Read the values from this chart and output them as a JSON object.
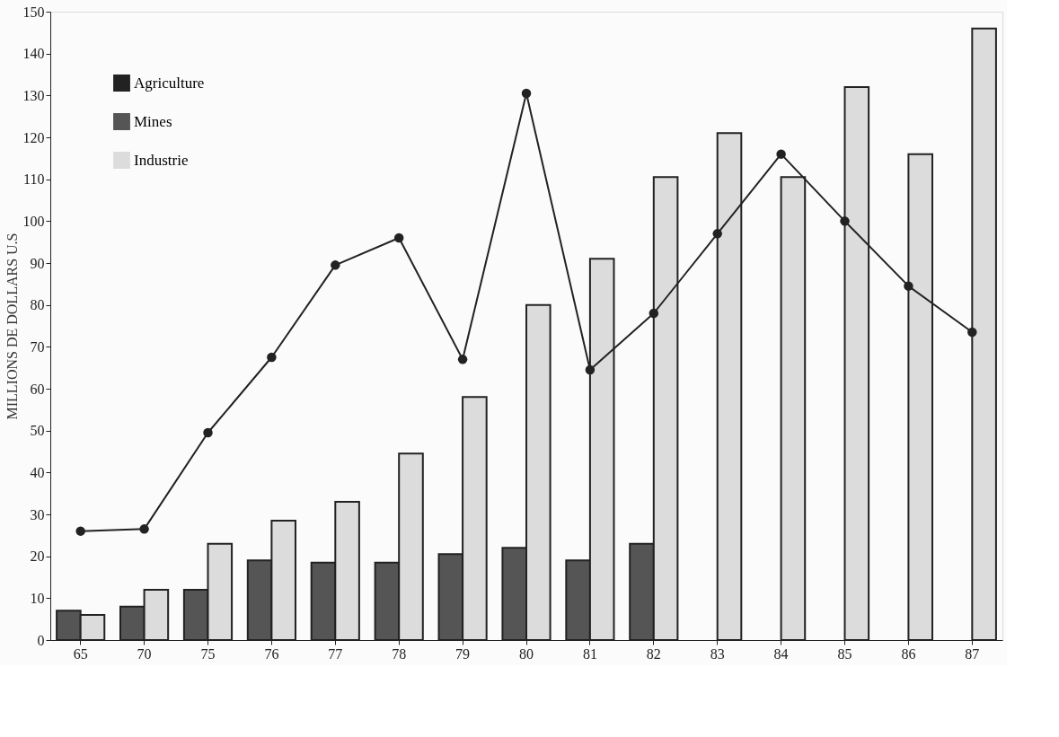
{
  "chart_data": {
    "type": "bar",
    "ylabel": "MILLIONS DE DOLLARS U.S",
    "categories": [
      "65",
      "70",
      "75",
      "76",
      "77",
      "78",
      "79",
      "80",
      "81",
      "82",
      "83",
      "84",
      "85",
      "86",
      "87"
    ],
    "series": [
      {
        "name": "Agriculture",
        "type": "line",
        "color": "#222222",
        "values": [
          26,
          26.5,
          49.5,
          67.5,
          89.5,
          96,
          67,
          130.5,
          64.5,
          78,
          97,
          116,
          100,
          84.5,
          73.5
        ]
      },
      {
        "name": "Mines",
        "color": "#555555",
        "values": [
          7,
          8,
          12,
          19,
          18.5,
          18.5,
          20.5,
          22,
          19,
          23,
          null,
          null,
          null,
          null,
          null
        ]
      },
      {
        "name": "Industrie",
        "color": "#dcdcdc",
        "values": [
          6,
          12,
          23,
          28.5,
          33,
          44.5,
          58,
          80,
          91,
          110.5,
          121,
          110.5,
          132,
          116,
          146
        ]
      }
    ],
    "ylim": [
      0,
      150
    ],
    "yticks": [
      0,
      10,
      20,
      30,
      40,
      50,
      60,
      70,
      80,
      90,
      100,
      110,
      120,
      130,
      140,
      150
    ],
    "marker": "circle",
    "legend": "top left",
    "grid": false
  }
}
